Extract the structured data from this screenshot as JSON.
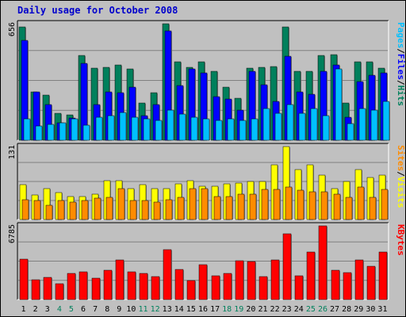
{
  "chart_data": {
    "type": "bar",
    "title": "Daily usage for October 2008",
    "categories": [
      "1",
      "2",
      "3",
      "4",
      "5",
      "6",
      "7",
      "8",
      "9",
      "10",
      "11",
      "12",
      "13",
      "14",
      "15",
      "16",
      "17",
      "18",
      "19",
      "20",
      "21",
      "22",
      "23",
      "24",
      "25",
      "26",
      "27",
      "28",
      "29",
      "30",
      "31"
    ],
    "weekend_days": [
      "4",
      "5",
      "11",
      "12",
      "18",
      "19",
      "25",
      "26"
    ],
    "grid": true,
    "panels": [
      {
        "name": "hits-files-pages",
        "ymax": 656,
        "ymax_label": "656",
        "right_label": [
          "Pages",
          "/",
          "Files",
          "/",
          "Hits"
        ],
        "series": [
          {
            "name": "Hits",
            "color": "#00805c",
            "values": [
              640,
              272,
              254,
              150,
              144,
              478,
              408,
              412,
              424,
              400,
              209,
              268,
              656,
              444,
              412,
              444,
              388,
              301,
              238,
              408,
              412,
              414,
              638,
              388,
              388,
              478,
              480,
              210,
              444,
              444,
              404
            ]
          },
          {
            "name": "Files",
            "color": "#0000ff",
            "values": [
              564,
              272,
              200,
              100,
              124,
              434,
              200,
              272,
              268,
              300,
              140,
              200,
              618,
              306,
              400,
              380,
              246,
              230,
              170,
              388,
              312,
              220,
              474,
              272,
              260,
              390,
              426,
              128,
              330,
              364,
              380
            ]
          },
          {
            "name": "Pages",
            "color": "#00c0ff",
            "values": [
              120,
              80,
              90,
              100,
              120,
              85,
              128,
              140,
              158,
              130,
              120,
              110,
              170,
              146,
              128,
              120,
              110,
              120,
              110,
              120,
              180,
              150,
              200,
              152,
              180,
              140,
              400,
              94,
              180,
              170,
              220
            ]
          }
        ]
      },
      {
        "name": "visits-sites",
        "ymax": 131,
        "ymax_label": "131",
        "right_label": [
          "Sites",
          "/",
          "Visits"
        ],
        "series": [
          {
            "name": "Visits",
            "color": "#ffff00",
            "values": [
              62,
              44,
              56,
              48,
              42,
              42,
              46,
              70,
              70,
              56,
              62,
              56,
              56,
              64,
              70,
              60,
              60,
              64,
              66,
              68,
              68,
              98,
              131,
              90,
              98,
              80,
              56,
              68,
              90,
              76,
              80
            ]
          },
          {
            "name": "Sites",
            "color": "#ff8c00",
            "values": [
              36,
              34,
              26,
              34,
              32,
              34,
              38,
              40,
              56,
              34,
              34,
              32,
              36,
              40,
              56,
              56,
              42,
              42,
              46,
              46,
              54,
              54,
              58,
              52,
              50,
              50,
              46,
              40,
              58,
              40,
              54
            ]
          }
        ]
      },
      {
        "name": "kbytes",
        "ymax": 6785,
        "ymax_label": "6785",
        "right_label": [
          "KBytes"
        ],
        "series": [
          {
            "name": "KBytes",
            "color": "#ff0000",
            "values": [
              3740,
              1860,
              2060,
              1440,
              2440,
              2560,
              1950,
              2700,
              3640,
              2580,
              2400,
              2140,
              4620,
              2760,
              1740,
              3230,
              2160,
              2390,
              3570,
              3500,
              2120,
              3670,
              6080,
              2220,
              4360,
              6785,
              2700,
              2450,
              3670,
              3040,
              4360
            ]
          }
        ]
      }
    ]
  },
  "colors": {
    "background": "#c0c0c0",
    "weekday_label": "#000000",
    "weekend_label": "#00805c",
    "title": "#0000cc"
  }
}
